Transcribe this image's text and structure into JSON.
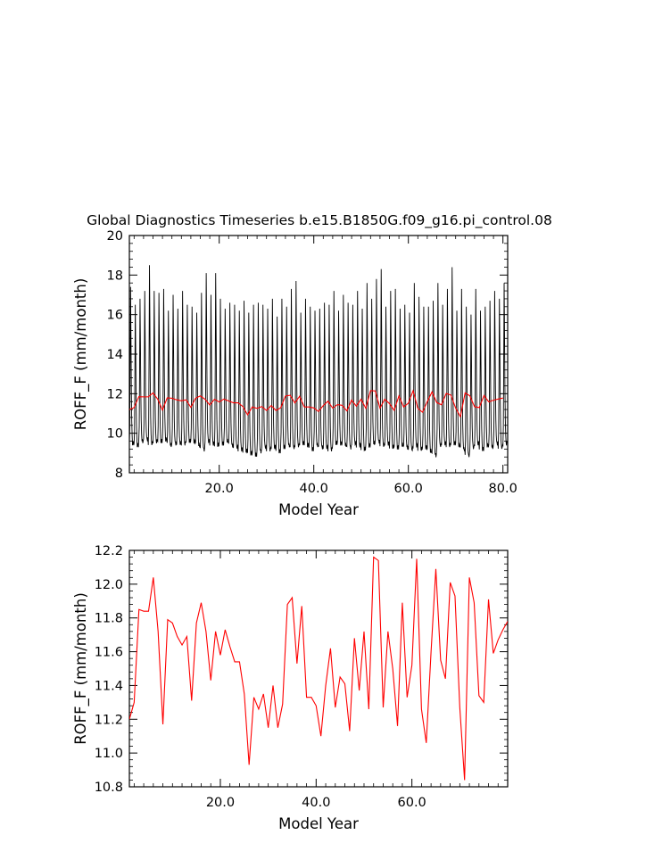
{
  "title": "Global Diagnostics Timeseries b.e15.B1850G.f09_g16.pi_control.08",
  "colors": {
    "monthly": "#000000",
    "annual": "#ff0000",
    "axes": "#000000"
  },
  "chart_data": [
    {
      "type": "line",
      "xlabel": "Model Year",
      "ylabel": "ROFF_F (mm/month)",
      "xlim": [
        1,
        81
      ],
      "ylim": [
        8,
        20
      ],
      "xticks": [
        20,
        40,
        60,
        80
      ],
      "xtick_labels": [
        "20.0",
        "40.0",
        "60.0",
        "80.0"
      ],
      "yticks": [
        8,
        10,
        12,
        14,
        16,
        18,
        20
      ],
      "ytick_labels": [
        "8",
        "10",
        "12",
        "14",
        "16",
        "18",
        "20"
      ],
      "series": [
        {
          "kind": "monthly",
          "color": "#000000",
          "seasonal_cycle": [
            0.0,
            0.1,
            0.5,
            1.0,
            0.7,
            0.35,
            0.15,
            0.05,
            0.0,
            0.0,
            0.0,
            0.0
          ],
          "peaks": [
            17.4,
            16.5,
            16.8,
            17.2,
            18.5,
            17.2,
            17.1,
            17.3,
            16.2,
            17.0,
            16.3,
            17.2,
            16.5,
            16.4,
            16.1,
            17.1,
            18.1,
            17.0,
            18.1,
            16.8,
            16.3,
            16.6,
            16.5,
            16.2,
            16.7,
            16.1,
            16.5,
            16.6,
            16.5,
            16.3,
            16.8,
            15.9,
            16.8,
            16.4,
            17.3,
            17.7,
            16.1,
            16.8,
            16.4,
            16.2,
            16.3,
            16.6,
            16.5,
            17.2,
            16.2,
            17.0,
            16.6,
            16.5,
            17.2,
            16.3,
            17.6,
            16.8,
            17.8,
            18.3,
            16.4,
            17.2,
            17.3,
            16.3,
            16.5,
            16.1,
            17.6,
            16.9,
            16.4,
            16.4,
            16.7,
            17.6,
            16.5,
            17.3,
            18.4,
            16.2,
            17.3,
            16.4,
            16.0,
            17.3,
            16.2,
            16.4,
            16.7,
            17.2,
            16.8,
            17.6
          ],
          "troughs": [
            9.5,
            9.4,
            9.6,
            9.7,
            9.5,
            9.6,
            9.6,
            9.7,
            9.4,
            9.5,
            9.5,
            9.5,
            9.6,
            9.6,
            9.4,
            9.2,
            9.6,
            9.5,
            9.4,
            9.5,
            9.6,
            9.4,
            9.3,
            9.2,
            9.1,
            9.0,
            8.9,
            9.1,
            9.3,
            9.2,
            9.3,
            9.1,
            9.3,
            9.4,
            9.3,
            9.4,
            9.5,
            9.4,
            9.2,
            9.4,
            9.3,
            9.3,
            9.2,
            9.5,
            9.5,
            9.4,
            9.3,
            9.5,
            9.4,
            9.2,
            9.4,
            9.5,
            9.6,
            9.4,
            9.5,
            9.3,
            9.3,
            9.4,
            9.3,
            9.2,
            9.4,
            9.2,
            9.3,
            9.1,
            8.9,
            9.4,
            9.5,
            9.4,
            9.5,
            9.4,
            9.2,
            8.9,
            9.3,
            9.5,
            9.2,
            9.4,
            9.3,
            9.5,
            9.3,
            9.5
          ]
        },
        {
          "kind": "annual",
          "color": "#ff0000",
          "x": [
            1,
            2,
            3,
            4,
            5,
            6,
            7,
            8,
            9,
            10,
            11,
            12,
            13,
            14,
            15,
            16,
            17,
            18,
            19,
            20,
            21,
            22,
            23,
            24,
            25,
            26,
            27,
            28,
            29,
            30,
            31,
            32,
            33,
            34,
            35,
            36,
            37,
            38,
            39,
            40,
            41,
            42,
            43,
            44,
            45,
            46,
            47,
            48,
            49,
            50,
            51,
            52,
            53,
            54,
            55,
            56,
            57,
            58,
            59,
            60,
            61,
            62,
            63,
            64,
            65,
            66,
            67,
            68,
            69,
            70,
            71,
            72,
            73,
            74,
            75,
            76,
            77,
            78,
            79,
            80
          ],
          "values": [
            11.2,
            11.3,
            11.85,
            11.84,
            11.84,
            12.04,
            11.72,
            11.17,
            11.79,
            11.77,
            11.69,
            11.64,
            11.69,
            11.31,
            11.77,
            11.89,
            11.72,
            11.43,
            11.72,
            11.58,
            11.73,
            11.63,
            11.54,
            11.54,
            11.35,
            10.93,
            11.33,
            11.26,
            11.35,
            11.15,
            11.4,
            11.15,
            11.29,
            11.88,
            11.92,
            11.53,
            11.87,
            11.33,
            11.33,
            11.28,
            11.1,
            11.4,
            11.62,
            11.27,
            11.45,
            11.41,
            11.13,
            11.68,
            11.37,
            11.72,
            11.26,
            12.16,
            12.14,
            11.27,
            11.72,
            11.5,
            11.16,
            11.89,
            11.33,
            11.52,
            12.15,
            11.26,
            11.06,
            11.6,
            12.09,
            11.55,
            11.44,
            12.01,
            11.93,
            11.27,
            10.84,
            12.04,
            11.89,
            11.34,
            11.3,
            11.91,
            11.59,
            11.67,
            11.73,
            11.78
          ]
        }
      ]
    },
    {
      "type": "line",
      "xlabel": "Model Year",
      "ylabel": "ROFF_F (mm/month)",
      "xlim": [
        1,
        80
      ],
      "ylim": [
        10.8,
        12.2
      ],
      "xticks": [
        20,
        40,
        60
      ],
      "xtick_labels": [
        "20.0",
        "40.0",
        "60.0"
      ],
      "yticks": [
        10.8,
        11.0,
        11.2,
        11.4,
        11.6,
        11.8,
        12.0,
        12.2
      ],
      "ytick_labels": [
        "10.8",
        "11.0",
        "11.2",
        "11.4",
        "11.6",
        "11.8",
        "12.0",
        "12.2"
      ],
      "series": [
        {
          "kind": "annual",
          "color": "#ff0000",
          "x": [
            1,
            2,
            3,
            4,
            5,
            6,
            7,
            8,
            9,
            10,
            11,
            12,
            13,
            14,
            15,
            16,
            17,
            18,
            19,
            20,
            21,
            22,
            23,
            24,
            25,
            26,
            27,
            28,
            29,
            30,
            31,
            32,
            33,
            34,
            35,
            36,
            37,
            38,
            39,
            40,
            41,
            42,
            43,
            44,
            45,
            46,
            47,
            48,
            49,
            50,
            51,
            52,
            53,
            54,
            55,
            56,
            57,
            58,
            59,
            60,
            61,
            62,
            63,
            64,
            65,
            66,
            67,
            68,
            69,
            70,
            71,
            72,
            73,
            74,
            75,
            76,
            77,
            78,
            79,
            80
          ],
          "values": [
            11.2,
            11.3,
            11.85,
            11.84,
            11.84,
            12.04,
            11.72,
            11.17,
            11.79,
            11.77,
            11.69,
            11.64,
            11.69,
            11.31,
            11.77,
            11.89,
            11.72,
            11.43,
            11.72,
            11.58,
            11.73,
            11.63,
            11.54,
            11.54,
            11.35,
            10.93,
            11.33,
            11.26,
            11.35,
            11.15,
            11.4,
            11.15,
            11.29,
            11.88,
            11.92,
            11.53,
            11.87,
            11.33,
            11.33,
            11.28,
            11.1,
            11.4,
            11.62,
            11.27,
            11.45,
            11.41,
            11.13,
            11.68,
            11.37,
            11.72,
            11.26,
            12.16,
            12.14,
            11.27,
            11.72,
            11.5,
            11.16,
            11.89,
            11.33,
            11.52,
            12.15,
            11.26,
            11.06,
            11.6,
            12.09,
            11.55,
            11.44,
            12.01,
            11.93,
            11.27,
            10.84,
            12.04,
            11.89,
            11.34,
            11.3,
            11.91,
            11.59,
            11.67,
            11.73,
            11.78
          ]
        }
      ]
    }
  ]
}
